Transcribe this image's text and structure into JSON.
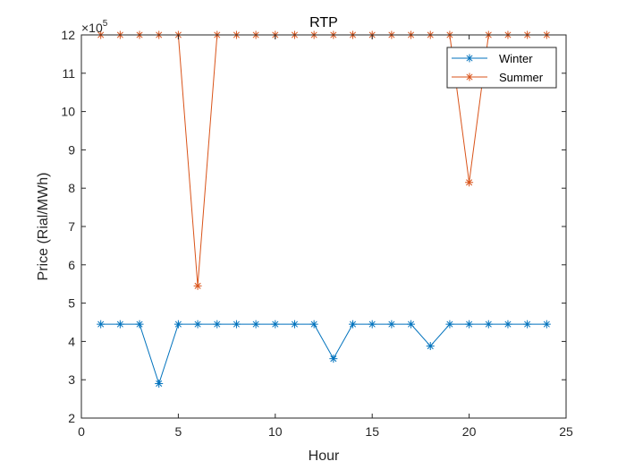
{
  "chart_data": {
    "type": "line",
    "title": "RTP",
    "xlabel": "Hour",
    "ylabel": "Price (Rial/MWh)",
    "y_exponent_label": "×10",
    "y_exponent_power": "5",
    "xlim": [
      0,
      25
    ],
    "ylim": [
      2,
      12
    ],
    "x_ticks": [
      0,
      5,
      10,
      15,
      20,
      25
    ],
    "y_ticks": [
      2,
      3,
      4,
      5,
      6,
      7,
      8,
      9,
      10,
      11,
      12
    ],
    "grid": false,
    "legend_position": "top-right",
    "x": [
      1,
      2,
      3,
      4,
      5,
      6,
      7,
      8,
      9,
      10,
      11,
      12,
      13,
      14,
      15,
      16,
      17,
      18,
      19,
      20,
      21,
      22,
      23,
      24
    ],
    "series": [
      {
        "name": "Winter",
        "color": "#0072BD",
        "marker": "asterisk",
        "values": [
          4.45,
          4.45,
          4.45,
          2.9,
          4.45,
          4.45,
          4.45,
          4.45,
          4.45,
          4.45,
          4.45,
          4.45,
          3.55,
          4.45,
          4.45,
          4.45,
          4.45,
          3.88,
          4.45,
          4.45,
          4.45,
          4.45,
          4.45,
          4.45
        ]
      },
      {
        "name": "Summer",
        "color": "#D95319",
        "marker": "asterisk",
        "values": [
          12,
          12,
          12,
          12,
          12,
          5.45,
          12,
          12,
          12,
          12,
          12,
          12,
          12,
          12,
          12,
          12,
          12,
          12,
          12,
          8.15,
          12,
          12,
          12,
          12
        ]
      }
    ]
  }
}
